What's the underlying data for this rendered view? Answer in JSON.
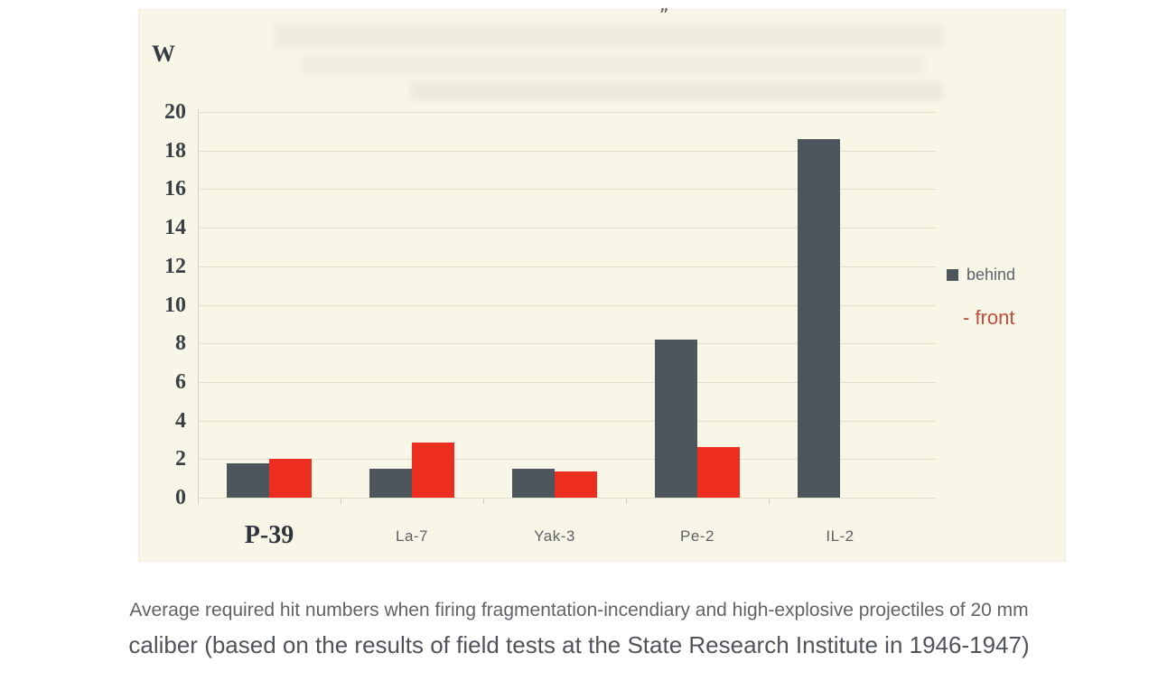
{
  "chart": {
    "background_color": "#f8f6e6",
    "w_label": "W",
    "artifact_mark": "”",
    "legend": [
      {
        "label": "behind",
        "swatch": true,
        "swatch_color": "#4d565c",
        "text_color": "#5d636b"
      },
      {
        "label": "- front",
        "swatch": false,
        "text_color": "#c14b3e"
      }
    ]
  },
  "chart_data": {
    "type": "bar",
    "title": "",
    "categories": [
      "P-39",
      "La-7",
      "Yak-3",
      "Pe-2",
      "IL-2"
    ],
    "series": [
      {
        "name": "behind",
        "color": "#4d565c",
        "values": [
          1.8,
          1.5,
          1.5,
          8.2,
          18.6
        ]
      },
      {
        "name": "front",
        "color": "#ee2d21",
        "values": [
          2.0,
          2.85,
          1.35,
          2.6,
          null
        ]
      }
    ],
    "ylabel": "W",
    "ylim": [
      0,
      20
    ],
    "yticks": [
      0,
      2,
      4,
      6,
      8,
      10,
      12,
      14,
      16,
      18,
      20
    ],
    "grid": true,
    "legend_position": "right",
    "emphasized_category": "P-39"
  },
  "caption": {
    "line1": "Average required hit numbers when firing fragmentation-incendiary and high-explosive projectiles of 20 mm",
    "line2": "caliber (based on the results of field tests at the State Research Institute in 1946-1947)"
  }
}
